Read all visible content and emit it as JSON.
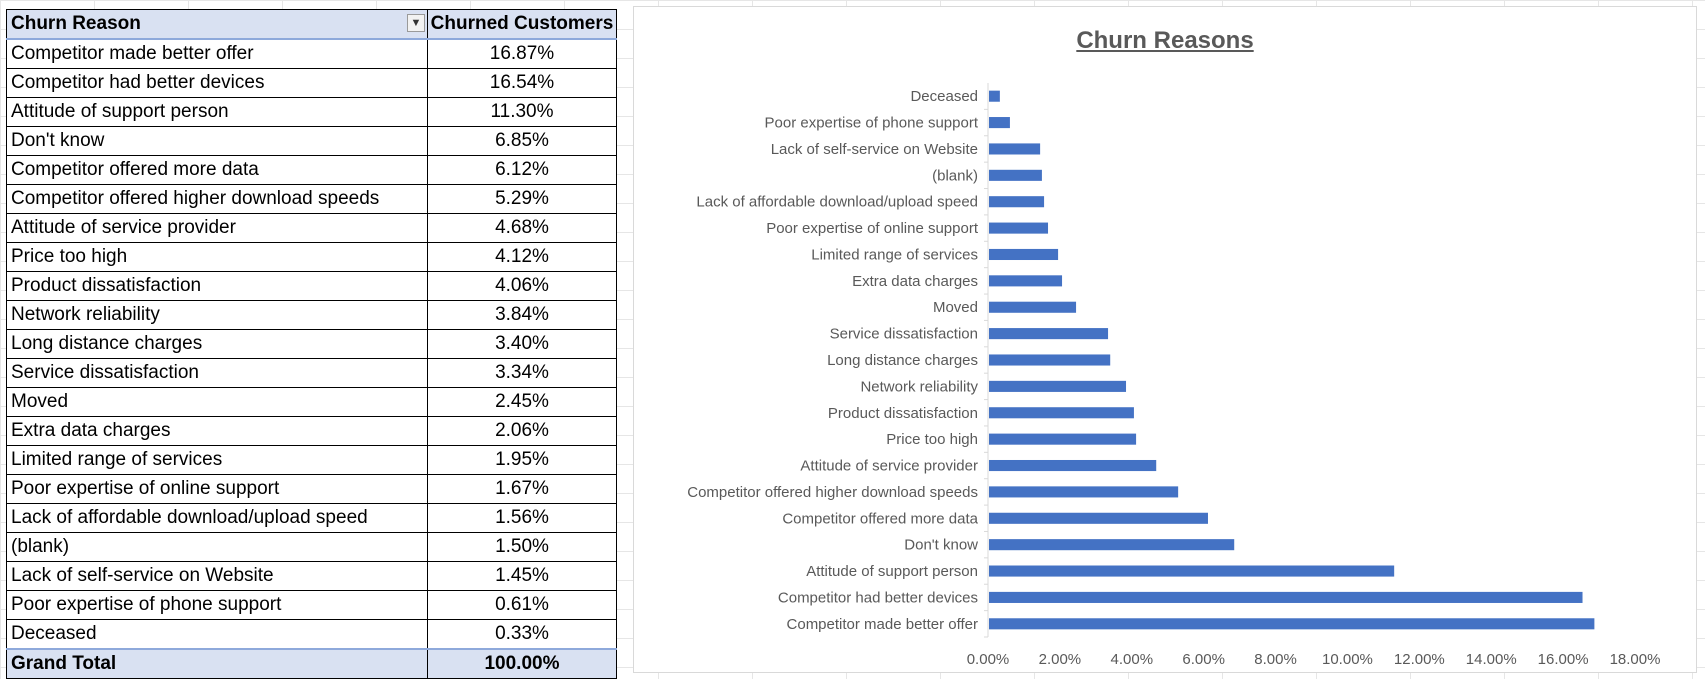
{
  "pivot": {
    "headers": {
      "reason": "Churn Reason",
      "churned": "Churned Customers"
    },
    "rows": [
      {
        "reason": "Competitor made better offer",
        "value": "16.87%"
      },
      {
        "reason": "Competitor had better devices",
        "value": "16.54%"
      },
      {
        "reason": "Attitude of support person",
        "value": "11.30%"
      },
      {
        "reason": "Don't know",
        "value": "6.85%"
      },
      {
        "reason": "Competitor offered more data",
        "value": "6.12%"
      },
      {
        "reason": "Competitor offered higher download speeds",
        "value": "5.29%"
      },
      {
        "reason": "Attitude of service provider",
        "value": "4.68%"
      },
      {
        "reason": "Price too high",
        "value": "4.12%"
      },
      {
        "reason": "Product dissatisfaction",
        "value": "4.06%"
      },
      {
        "reason": "Network reliability",
        "value": "3.84%"
      },
      {
        "reason": "Long distance charges",
        "value": "3.40%"
      },
      {
        "reason": "Service dissatisfaction",
        "value": "3.34%"
      },
      {
        "reason": "Moved",
        "value": "2.45%"
      },
      {
        "reason": "Extra data charges",
        "value": "2.06%"
      },
      {
        "reason": "Limited range of services",
        "value": "1.95%"
      },
      {
        "reason": "Poor expertise of online support",
        "value": "1.67%"
      },
      {
        "reason": "Lack of affordable download/upload speed",
        "value": "1.56%"
      },
      {
        "reason": "(blank)",
        "value": "1.50%"
      },
      {
        "reason": "Lack of self-service on Website",
        "value": "1.45%"
      },
      {
        "reason": "Poor expertise of phone support",
        "value": "0.61%"
      },
      {
        "reason": "Deceased",
        "value": "0.33%"
      }
    ],
    "total": {
      "label": "Grand Total",
      "value": "100.00%"
    }
  },
  "chart_data": {
    "type": "bar",
    "orientation": "horizontal",
    "title": "Churn Reasons",
    "categories": [
      "Competitor made better offer",
      "Competitor had better devices",
      "Attitude of support person",
      "Don't know",
      "Competitor offered more data",
      "Competitor offered higher download speeds",
      "Attitude of service provider",
      "Price too high",
      "Product dissatisfaction",
      "Network reliability",
      "Long distance charges",
      "Service dissatisfaction",
      "Moved",
      "Extra data charges",
      "Limited range of services",
      "Poor expertise of online support",
      "Lack of affordable download/upload speed",
      "(blank)",
      "Lack of self-service on Website",
      "Poor expertise of phone support",
      "Deceased"
    ],
    "values": [
      16.87,
      16.54,
      11.3,
      6.85,
      6.12,
      5.29,
      4.68,
      4.12,
      4.06,
      3.84,
      3.4,
      3.34,
      2.45,
      2.06,
      1.95,
      1.67,
      1.56,
      1.5,
      1.45,
      0.61,
      0.33
    ],
    "xlim": [
      0,
      18
    ],
    "xticks": [
      "0.00%",
      "2.00%",
      "4.00%",
      "6.00%",
      "8.00%",
      "10.00%",
      "12.00%",
      "14.00%",
      "16.00%",
      "18.00%"
    ],
    "grid": false,
    "legend": "none",
    "bar_color": "#4472c4"
  }
}
